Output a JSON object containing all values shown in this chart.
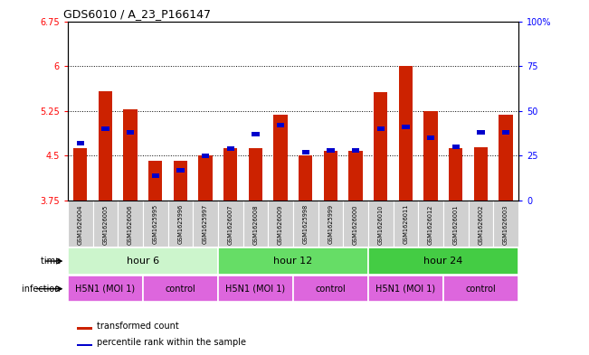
{
  "title": "GDS6010 / A_23_P166147",
  "samples": [
    "GSM1626004",
    "GSM1626005",
    "GSM1626006",
    "GSM1625995",
    "GSM1625996",
    "GSM1625997",
    "GSM1626007",
    "GSM1626008",
    "GSM1626009",
    "GSM1625998",
    "GSM1625999",
    "GSM1626000",
    "GSM1626010",
    "GSM1626011",
    "GSM1626012",
    "GSM1626001",
    "GSM1626002",
    "GSM1626003"
  ],
  "red_values": [
    4.62,
    5.58,
    5.28,
    4.42,
    4.42,
    4.5,
    4.62,
    4.62,
    5.18,
    4.5,
    4.58,
    4.58,
    5.56,
    6.01,
    5.24,
    4.62,
    4.65,
    5.18
  ],
  "blue_pct": [
    32,
    40,
    38,
    14,
    17,
    25,
    29,
    37,
    42,
    27,
    28,
    28,
    40,
    41,
    35,
    30,
    38,
    38
  ],
  "ylim_left": [
    3.75,
    6.75
  ],
  "ylim_right": [
    0,
    100
  ],
  "yticks_left": [
    3.75,
    4.5,
    5.25,
    6.0,
    6.75
  ],
  "ytick_labels_left": [
    "3.75",
    "4.5",
    "5.25",
    "6",
    "6.75"
  ],
  "yticks_right": [
    0,
    25,
    50,
    75,
    100
  ],
  "ytick_labels_right": [
    "0",
    "25",
    "50",
    "75",
    "100%"
  ],
  "hlines": [
    4.5,
    5.25,
    6.0
  ],
  "time_groups": [
    {
      "label": "hour 6",
      "start": 0,
      "end": 6,
      "color": "#ccf5cc"
    },
    {
      "label": "hour 12",
      "start": 6,
      "end": 12,
      "color": "#66dd66"
    },
    {
      "label": "hour 24",
      "start": 12,
      "end": 18,
      "color": "#44cc44"
    }
  ],
  "inf_groups": [
    {
      "label": "H5N1 (MOI 1)",
      "start": 0,
      "end": 3
    },
    {
      "label": "control",
      "start": 3,
      "end": 6
    },
    {
      "label": "H5N1 (MOI 1)",
      "start": 6,
      "end": 9
    },
    {
      "label": "control",
      "start": 9,
      "end": 12
    },
    {
      "label": "H5N1 (MOI 1)",
      "start": 12,
      "end": 15
    },
    {
      "label": "control",
      "start": 15,
      "end": 18
    }
  ],
  "inf_color": "#dd66dd",
  "bar_color": "#cc2200",
  "blue_color": "#0000cc",
  "base_value": 3.75,
  "bar_width": 0.55,
  "sample_bg_color": "#d0d0d0"
}
